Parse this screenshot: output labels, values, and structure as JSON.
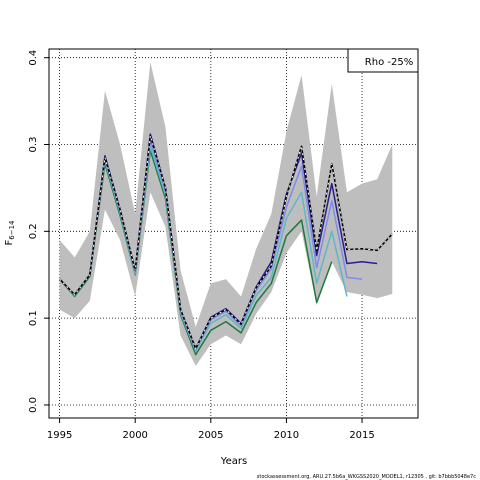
{
  "chart_data": {
    "type": "line",
    "xlabel": "Years",
    "ylabel": "F",
    "ylabel_sub": "6−14",
    "xlim": [
      1994.3,
      2018.7
    ],
    "ylim": [
      -0.015,
      0.41
    ],
    "x_ticks": [
      1995,
      2000,
      2005,
      2010,
      2015
    ],
    "y_ticks": [
      0.0,
      0.1,
      0.2,
      0.3,
      0.4
    ],
    "y_tick_labels": [
      "0.0",
      "0.1",
      "0.2",
      "0.3",
      "0.4"
    ],
    "grid": true,
    "legend": {
      "text": "Rho -25%",
      "placement": "top-right"
    },
    "footer": "stockassessment.org, ARU.27.5b6a_WKGSS2020_MODEL1, r12305 , git: b7bbb5048e7c",
    "band": {
      "color": "#bebebe",
      "x": [
        1995,
        1996,
        1997,
        1998,
        1999,
        2000,
        2001,
        2002,
        2003,
        2004,
        2005,
        2006,
        2007,
        2008,
        2009,
        2010,
        2011,
        2012,
        2013,
        2014,
        2015,
        2016,
        2017
      ],
      "lower": [
        0.11,
        0.1,
        0.12,
        0.225,
        0.19,
        0.125,
        0.245,
        0.205,
        0.08,
        0.045,
        0.07,
        0.08,
        0.07,
        0.105,
        0.13,
        0.175,
        0.2,
        0.115,
        0.165,
        0.13,
        0.127,
        0.123,
        0.128
      ],
      "upper": [
        0.19,
        0.17,
        0.2,
        0.362,
        0.3,
        0.22,
        0.395,
        0.32,
        0.155,
        0.09,
        0.14,
        0.145,
        0.125,
        0.18,
        0.22,
        0.315,
        0.38,
        0.24,
        0.37,
        0.245,
        0.255,
        0.26,
        0.3
      ]
    },
    "series": [
      {
        "color": "#000000",
        "width": 1.5,
        "dash": true,
        "x": [
          1995,
          1996,
          1997,
          1998,
          1999,
          2000,
          2001,
          2002,
          2003,
          2004,
          2005,
          2006,
          2007,
          2008,
          2009,
          2010,
          2011,
          2012,
          2013,
          2014,
          2015,
          2016,
          2017
        ],
        "values": [
          0.145,
          0.127,
          0.15,
          0.285,
          0.225,
          0.155,
          0.31,
          0.25,
          0.11,
          0.065,
          0.1,
          0.11,
          0.093,
          0.135,
          0.16,
          0.24,
          0.298,
          0.178,
          0.278,
          0.179,
          0.18,
          0.178,
          0.197
        ]
      },
      {
        "color": "#2b1d8f",
        "width": 1.5,
        "dash": false,
        "x": [
          1995,
          1996,
          1997,
          1998,
          1999,
          2000,
          2001,
          2002,
          2003,
          2004,
          2005,
          2006,
          2007,
          2008,
          2009,
          2010,
          2011,
          2012,
          2013,
          2014,
          2015,
          2016
        ],
        "values": [
          0.145,
          0.127,
          0.15,
          0.287,
          0.225,
          0.155,
          0.312,
          0.25,
          0.11,
          0.065,
          0.101,
          0.111,
          0.094,
          0.136,
          0.165,
          0.243,
          0.29,
          0.172,
          0.255,
          0.163,
          0.165,
          0.163
        ]
      },
      {
        "color": "#7b8ee8",
        "width": 1.5,
        "dash": false,
        "x": [
          1995,
          1996,
          1997,
          1998,
          1999,
          2000,
          2001,
          2002,
          2003,
          2004,
          2005,
          2006,
          2007,
          2008,
          2009,
          2010,
          2011,
          2012,
          2013,
          2014,
          2015
        ],
        "values": [
          0.145,
          0.127,
          0.15,
          0.284,
          0.223,
          0.153,
          0.305,
          0.246,
          0.108,
          0.064,
          0.098,
          0.108,
          0.091,
          0.132,
          0.157,
          0.228,
          0.275,
          0.158,
          0.235,
          0.147,
          0.145
        ]
      },
      {
        "color": "#5fb7c6",
        "width": 1.5,
        "dash": false,
        "x": [
          1995,
          1996,
          1997,
          1998,
          1999,
          2000,
          2001,
          2002,
          2003,
          2004,
          2005,
          2006,
          2007,
          2008,
          2009,
          2010,
          2011,
          2012,
          2013,
          2014
        ],
        "values": [
          0.145,
          0.126,
          0.15,
          0.281,
          0.221,
          0.151,
          0.298,
          0.242,
          0.106,
          0.062,
          0.094,
          0.104,
          0.088,
          0.126,
          0.147,
          0.215,
          0.245,
          0.14,
          0.2,
          0.125
        ]
      },
      {
        "color": "#1d7a3c",
        "width": 1.5,
        "dash": false,
        "x": [
          1995,
          1996,
          1997,
          1998,
          1999,
          2000,
          2001,
          2002,
          2003,
          2004,
          2005,
          2006,
          2007,
          2008,
          2009,
          2010,
          2011,
          2012,
          2013
        ],
        "values": [
          0.145,
          0.125,
          0.148,
          0.278,
          0.218,
          0.15,
          0.293,
          0.238,
          0.104,
          0.058,
          0.086,
          0.096,
          0.083,
          0.118,
          0.14,
          0.195,
          0.213,
          0.118,
          0.165
        ]
      }
    ]
  }
}
